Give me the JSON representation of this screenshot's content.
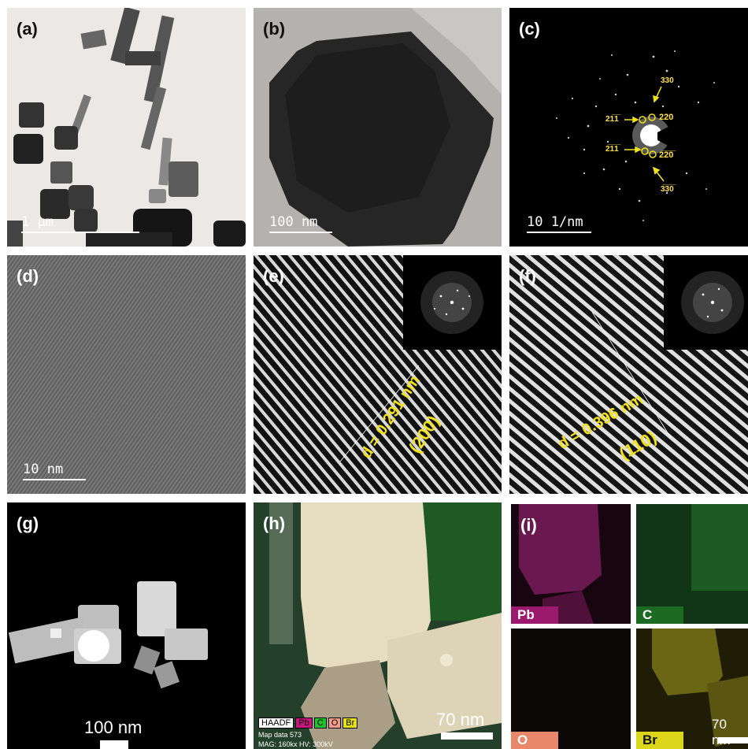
{
  "panels": {
    "a": {
      "label": "(a)",
      "scale_bar": "1 µm"
    },
    "b": {
      "label": "(b)",
      "scale_bar": "100 nm"
    },
    "c": {
      "label": "(c)",
      "scale_bar": "10 1/nm",
      "indices": [
        "330",
        "220",
        "21̅1̅",
        "2̅1̅1̅",
        "2̅2̅0̅",
        "3̅3̅0̅"
      ]
    },
    "d": {
      "label": "(d)",
      "scale_bar": "10 nm"
    },
    "e": {
      "label": "(e)",
      "d_spacing": "d = 0.291 nm",
      "plane": "(200)"
    },
    "f": {
      "label": "(f)",
      "d_spacing": "d = 0.396 nm",
      "plane": "(110)"
    },
    "g": {
      "label": "(g)",
      "scale_bar": "100 nm"
    },
    "h": {
      "label": "(h)",
      "scale_bar": "70 nm",
      "legend": [
        "HAADF",
        "Pb",
        "C",
        "O",
        "Br"
      ],
      "map_data": "Map data 573",
      "mag": "MAG: 160kx  HV: 300kV"
    },
    "i": {
      "label": "(i)",
      "scale_bar": "70 nm",
      "maps": [
        {
          "element": "Pb",
          "color": "#9b1a6e"
        },
        {
          "element": "C",
          "color": "#1c6b22"
        },
        {
          "element": "O",
          "color": "#e8876a"
        },
        {
          "element": "Br",
          "color": "#dcd61a"
        }
      ]
    }
  },
  "colors": {
    "yellow": "#f2e21a",
    "white": "#ffffff",
    "background": "#ffffff"
  }
}
